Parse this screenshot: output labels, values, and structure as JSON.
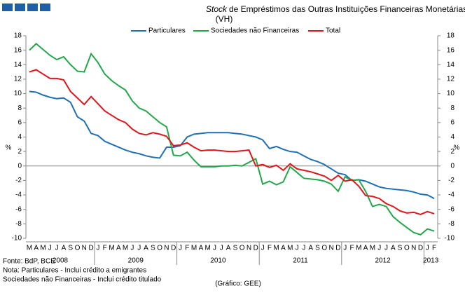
{
  "chart_data": {
    "type": "line",
    "title_em": "Stock",
    "title": "de Empréstimos das Outras Instituições Financeiras Monetárias",
    "subtitle": "(VH)",
    "ylabel": "%",
    "y2label": "%",
    "categories": [
      "M",
      "A",
      "M",
      "J",
      "J",
      "A",
      "S",
      "O",
      "N",
      "D",
      "J",
      "F",
      "M",
      "A",
      "M",
      "J",
      "J",
      "A",
      "S",
      "O",
      "N",
      "D",
      "J",
      "F",
      "M",
      "A",
      "M",
      "J",
      "J",
      "A",
      "S",
      "O",
      "N",
      "D",
      "J",
      "F",
      "M",
      "A",
      "M",
      "J",
      "J",
      "A",
      "S",
      "O",
      "N",
      "D",
      "J",
      "F",
      "M",
      "A",
      "M",
      "J",
      "J",
      "A",
      "S",
      "O",
      "N",
      "D",
      "J",
      "F"
    ],
    "years": [
      "2008",
      "2009",
      "2010",
      "2011",
      "2012",
      "2013"
    ],
    "series": [
      {
        "name": "Particulares",
        "color": "#1f6fb4",
        "values": [
          10.3,
          10.2,
          9.8,
          9.5,
          9.3,
          9.4,
          8.8,
          6.8,
          6.2,
          4.5,
          4.2,
          3.4,
          3.0,
          2.6,
          2.2,
          1.9,
          1.7,
          1.4,
          1.2,
          1.1,
          2.6,
          2.6,
          2.8,
          4.0,
          4.4,
          4.5,
          4.6,
          4.6,
          4.6,
          4.6,
          4.5,
          4.4,
          4.2,
          4.0,
          3.6,
          2.4,
          2.7,
          2.3,
          2.0,
          1.9,
          1.4,
          0.9,
          0.6,
          0.2,
          -0.4,
          -1.0,
          -1.2,
          -2.0,
          -1.9,
          -2.1,
          -2.5,
          -2.9,
          -3.1,
          -3.2,
          -3.3,
          -3.4,
          -3.6,
          -3.9,
          -4.0,
          -4.5
        ]
      },
      {
        "name": "Sociedades não Financeiras",
        "color": "#22a84a",
        "values": [
          16.0,
          16.9,
          16.1,
          15.3,
          14.7,
          15.1,
          14.0,
          13.1,
          13.0,
          15.5,
          14.3,
          12.7,
          11.8,
          11.1,
          10.5,
          9.0,
          8.0,
          7.6,
          6.8,
          6.0,
          5.4,
          1.5,
          1.4,
          1.9,
          0.8,
          -0.1,
          -0.1,
          -0.1,
          0.0,
          0.0,
          0.1,
          0.0,
          0.5,
          1.0,
          -2.5,
          -2.1,
          -2.6,
          -2.2,
          -0.1,
          -0.9,
          -1.7,
          -1.8,
          -1.9,
          -2.1,
          -2.5,
          -3.5,
          -1.5,
          -2.0,
          -1.9,
          -3.5,
          -5.6,
          -5.3,
          -5.6,
          -7.0,
          -7.8,
          -8.5,
          -9.2,
          -9.5,
          -8.7,
          -9.0
        ]
      },
      {
        "name": "Total",
        "color": "#e0161c",
        "values": [
          13.0,
          13.3,
          12.7,
          12.1,
          12.1,
          11.9,
          10.3,
          9.4,
          8.5,
          9.6,
          8.6,
          7.6,
          7.0,
          6.4,
          6.0,
          5.1,
          4.5,
          4.3,
          4.6,
          4.4,
          4.1,
          2.8,
          2.9,
          3.2,
          2.6,
          2.1,
          2.2,
          2.2,
          2.1,
          2.0,
          2.0,
          2.1,
          2.2,
          0.0,
          0.2,
          -0.2,
          0.1,
          -0.6,
          0.3,
          -0.4,
          -0.6,
          -0.8,
          -1.1,
          -1.4,
          -2.0,
          -1.3,
          -2.1,
          -1.9,
          -2.8,
          -4.1,
          -4.2,
          -4.5,
          -5.2,
          -5.6,
          -6.2,
          -6.5,
          -6.4,
          -6.7,
          -6.3,
          -6.6
        ]
      }
    ],
    "ylim": [
      -10,
      18
    ],
    "yticks": [
      -10,
      -8,
      -6,
      -4,
      -2,
      0,
      2,
      4,
      6,
      8,
      10,
      12,
      14,
      16,
      18
    ],
    "y2lim": [
      -10,
      18
    ],
    "y2ticks": [
      -10,
      -8,
      -6,
      -4,
      -2,
      0,
      2,
      4,
      6,
      8,
      10,
      12,
      14,
      16,
      18
    ],
    "notes": [
      "Fonte: BdP, BCE",
      "Nota: Particulares - Inclui crédito a emigrantes",
      "Sociedades não Financeiras - Inclui crédito titulado"
    ],
    "credit": "(Gráfico: GEE)"
  }
}
